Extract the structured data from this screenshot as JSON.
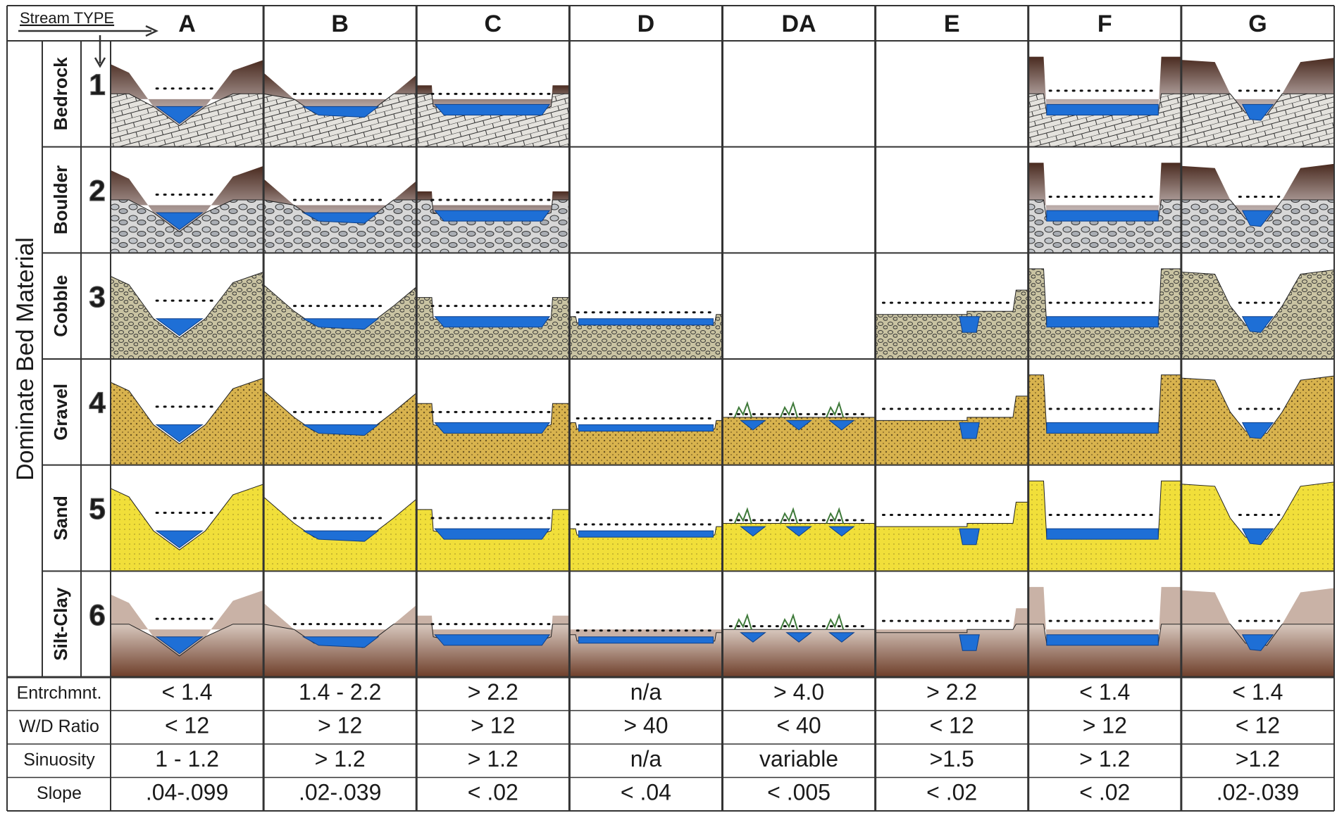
{
  "header": {
    "stream_type_label": "Stream TYPE",
    "columns": [
      "A",
      "B",
      "C",
      "D",
      "DA",
      "E",
      "F",
      "G"
    ]
  },
  "side_label": "Dominate Bed Material",
  "materials": [
    {
      "number": "1",
      "name": "Bedrock"
    },
    {
      "number": "2",
      "name": "Boulder"
    },
    {
      "number": "3",
      "name": "Cobble"
    },
    {
      "number": "4",
      "name": "Gravel"
    },
    {
      "number": "5",
      "name": "Sand"
    },
    {
      "number": "6",
      "name": "Silt-Clay"
    }
  ],
  "criteria": [
    {
      "label": "Entrchmnt.",
      "values": [
        "< 1.4",
        "1.4 - 2.2",
        "> 2.2",
        "n/a",
        "> 4.0",
        "> 2.2",
        "< 1.4",
        "< 1.4"
      ]
    },
    {
      "label": "W/D Ratio",
      "values": [
        "< 12",
        "> 12",
        "> 12",
        "> 40",
        "< 40",
        "< 12",
        "> 12",
        "< 12"
      ]
    },
    {
      "label": "Sinuosity",
      "values": [
        "1 - 1.2",
        "> 1.2",
        "> 1.2",
        "n/a",
        "variable",
        ">1.5",
        "> 1.2",
        ">1.2"
      ]
    },
    {
      "label": "Slope",
      "values": [
        ".04-.099",
        ".02-.039",
        "< .02",
        "< .04",
        "< .005",
        "< .02",
        "< .02",
        ".02-.039"
      ]
    }
  ]
}
